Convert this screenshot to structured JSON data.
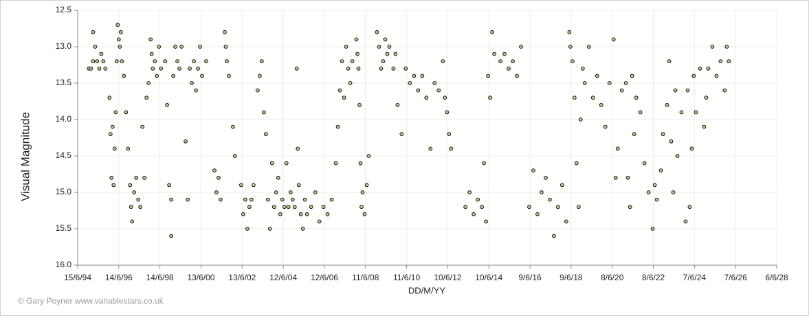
{
  "chart_data": {
    "type": "scatter",
    "y_label": "Visual Magnitude",
    "x_label": "DD/M/YY",
    "credit": "© Gary Poyner www.variablestars.co.uk",
    "color": "#c9c68c",
    "grid": true,
    "y_inverted": true,
    "ylim": [
      12.5,
      16.0
    ],
    "yticks": [
      12.5,
      {
        "value": 13.0,
        "label": "13.0"
      },
      13.5,
      {
        "value": 14.0,
        "label": "14.0"
      },
      14.5,
      {
        "value": 15.0,
        "label": "15.0"
      },
      15.5,
      {
        "value": 16.0,
        "label": "16.0"
      }
    ],
    "xlim": [
      1994.453,
      2028.427
    ],
    "xticks": [
      {
        "value": 1994.453,
        "label": "15/6/94"
      },
      {
        "value": 1996.451,
        "label": "14/6/96"
      },
      {
        "value": 1998.45,
        "label": "14/6/98"
      },
      {
        "value": 2000.448,
        "label": "13/6/00"
      },
      {
        "value": 2002.447,
        "label": "13/6/02"
      },
      {
        "value": 2004.445,
        "label": "12/6/04"
      },
      {
        "value": 2006.444,
        "label": "12/6/06"
      },
      {
        "value": 2008.442,
        "label": "11/6/08"
      },
      {
        "value": 2010.44,
        "label": "11/6/10"
      },
      {
        "value": 2012.439,
        "label": "10/6/12"
      },
      {
        "value": 2014.437,
        "label": "10/6/14"
      },
      {
        "value": 2016.436,
        "label": "9/6/16"
      },
      {
        "value": 2018.434,
        "label": "9/6/18"
      },
      {
        "value": 2020.433,
        "label": "8/6/20"
      },
      {
        "value": 2022.431,
        "label": "8/6/22"
      },
      {
        "value": 2024.43,
        "label": "7/6/24"
      },
      {
        "value": 2026.428,
        "label": "7/6/26"
      },
      {
        "value": 2028.427,
        "label": "6/6/28"
      }
    ],
    "x": [
      1995.0,
      1995.1,
      1995.2,
      1995.2,
      1995.3,
      1995.4,
      1995.5,
      1995.6,
      1995.7,
      1995.8,
      1996.0,
      1996.05,
      1996.1,
      1996.15,
      1996.2,
      1996.25,
      1996.3,
      1996.35,
      1996.4,
      1996.45,
      1996.5,
      1996.55,
      1996.6,
      1996.7,
      1996.8,
      1996.9,
      1997.0,
      1997.05,
      1997.1,
      1997.2,
      1997.3,
      1997.4,
      1997.5,
      1997.6,
      1997.7,
      1997.8,
      1997.9,
      1998.0,
      1998.05,
      1998.1,
      1998.2,
      1998.3,
      1998.4,
      1998.5,
      1998.7,
      1998.8,
      1998.9,
      1999.0,
      1999.0,
      1999.1,
      1999.2,
      1999.3,
      1999.4,
      1999.5,
      1999.7,
      1999.8,
      1999.9,
      2000.0,
      2000.1,
      2000.2,
      2000.3,
      2000.4,
      2000.5,
      2000.7,
      2001.1,
      2001.2,
      2001.3,
      2001.4,
      2001.6,
      2001.65,
      2001.7,
      2001.8,
      2002.0,
      2002.1,
      2002.4,
      2002.5,
      2002.6,
      2002.7,
      2002.8,
      2002.9,
      2003.0,
      2003.2,
      2003.3,
      2003.4,
      2003.5,
      2003.6,
      2003.7,
      2003.8,
      2003.9,
      2004.0,
      2004.1,
      2004.2,
      2004.3,
      2004.4,
      2004.5,
      2004.6,
      2004.7,
      2004.8,
      2004.9,
      2005.0,
      2005.1,
      2005.15,
      2005.2,
      2005.3,
      2005.4,
      2005.5,
      2005.6,
      2005.8,
      2006.0,
      2006.2,
      2006.4,
      2006.6,
      2006.8,
      2007.0,
      2007.1,
      2007.2,
      2007.3,
      2007.4,
      2007.5,
      2007.6,
      2007.7,
      2007.8,
      2008.0,
      2008.05,
      2008.1,
      2008.15,
      2008.2,
      2008.25,
      2008.3,
      2008.4,
      2008.5,
      2008.6,
      2009.0,
      2009.1,
      2009.2,
      2009.3,
      2009.4,
      2009.5,
      2009.6,
      2009.8,
      2009.9,
      2010.0,
      2010.2,
      2010.4,
      2010.6,
      2010.8,
      2011.0,
      2011.2,
      2011.4,
      2011.6,
      2011.8,
      2012.0,
      2012.2,
      2012.3,
      2012.4,
      2012.5,
      2012.6,
      2013.3,
      2013.5,
      2013.7,
      2013.9,
      2014.1,
      2014.2,
      2014.3,
      2014.4,
      2014.5,
      2014.6,
      2014.7,
      2015.0,
      2015.2,
      2015.4,
      2015.6,
      2015.8,
      2016.0,
      2016.4,
      2016.6,
      2016.8,
      2017.0,
      2017.2,
      2017.4,
      2017.6,
      2017.8,
      2018.0,
      2018.2,
      2018.35,
      2018.4,
      2018.5,
      2018.6,
      2018.7,
      2018.8,
      2018.9,
      2019.0,
      2019.1,
      2019.3,
      2019.5,
      2019.7,
      2019.9,
      2020.1,
      2020.3,
      2020.5,
      2020.6,
      2020.7,
      2020.9,
      2021.1,
      2021.2,
      2021.3,
      2021.4,
      2021.5,
      2021.6,
      2021.8,
      2022.0,
      2022.2,
      2022.4,
      2022.5,
      2022.6,
      2022.8,
      2022.9,
      2023.1,
      2023.2,
      2023.3,
      2023.4,
      2023.5,
      2023.6,
      2023.8,
      2024.0,
      2024.1,
      2024.2,
      2024.3,
      2024.4,
      2024.5,
      2024.7,
      2024.9,
      2025.0,
      2025.1,
      2025.3,
      2025.5,
      2025.7,
      2025.9,
      2026.0,
      2026.1
    ],
    "values": [
      13.3,
      13.3,
      13.2,
      12.8,
      13.0,
      13.2,
      13.3,
      13.1,
      13.2,
      13.3,
      13.7,
      14.2,
      14.8,
      14.1,
      14.9,
      14.4,
      13.9,
      13.2,
      12.7,
      12.9,
      13.0,
      12.8,
      13.2,
      13.4,
      13.9,
      14.4,
      14.9,
      15.2,
      15.4,
      15.0,
      14.8,
      15.1,
      15.2,
      14.1,
      14.8,
      13.7,
      13.5,
      12.9,
      13.1,
      13.3,
      13.2,
      13.4,
      13.0,
      13.3,
      13.2,
      13.8,
      14.9,
      15.6,
      15.1,
      13.4,
      13.0,
      13.2,
      13.3,
      13.0,
      14.3,
      15.1,
      13.3,
      13.5,
      13.2,
      13.6,
      13.3,
      13.0,
      13.4,
      13.2,
      14.7,
      15.0,
      14.8,
      15.1,
      12.8,
      13.0,
      13.2,
      13.4,
      14.1,
      14.5,
      14.9,
      15.3,
      15.1,
      15.5,
      15.2,
      15.1,
      14.9,
      13.6,
      13.4,
      13.2,
      13.9,
      14.2,
      15.1,
      15.5,
      14.6,
      15.2,
      15.0,
      14.8,
      15.3,
      15.1,
      15.2,
      14.6,
      15.2,
      15.0,
      15.1,
      15.2,
      13.3,
      14.4,
      14.9,
      15.3,
      15.5,
      15.1,
      15.3,
      15.2,
      15.0,
      15.4,
      15.2,
      15.3,
      15.1,
      14.6,
      14.1,
      13.6,
      13.2,
      13.7,
      13.0,
      13.3,
      13.5,
      13.2,
      12.9,
      13.1,
      13.3,
      13.8,
      14.6,
      15.2,
      15.0,
      15.3,
      14.9,
      14.5,
      12.8,
      13.0,
      13.3,
      13.2,
      12.9,
      13.1,
      13.0,
      13.3,
      13.1,
      13.8,
      14.2,
      13.3,
      13.5,
      13.4,
      13.6,
      13.4,
      13.7,
      14.4,
      13.5,
      13.6,
      13.2,
      13.7,
      13.9,
      14.2,
      14.4,
      15.2,
      15.0,
      15.3,
      15.1,
      15.2,
      14.6,
      15.4,
      13.4,
      13.7,
      12.8,
      13.1,
      13.2,
      13.1,
      13.3,
      13.2,
      13.4,
      13.0,
      15.2,
      14.7,
      15.3,
      15.0,
      14.8,
      15.1,
      15.6,
      15.2,
      14.9,
      15.4,
      12.8,
      13.0,
      13.2,
      13.7,
      14.6,
      15.2,
      14.0,
      13.3,
      13.5,
      13.0,
      13.7,
      13.4,
      13.8,
      14.1,
      13.5,
      12.9,
      14.8,
      14.4,
      13.6,
      13.5,
      14.8,
      15.2,
      13.4,
      14.2,
      13.7,
      13.9,
      14.6,
      15.0,
      15.5,
      14.9,
      15.1,
      14.7,
      14.2,
      13.8,
      13.2,
      14.3,
      15.0,
      13.6,
      14.5,
      13.9,
      15.4,
      13.6,
      15.2,
      14.4,
      13.4,
      13.9,
      13.3,
      14.1,
      13.7,
      13.3,
      13.0,
      13.4,
      13.2,
      13.6,
      13.0,
      13.2
    ]
  }
}
